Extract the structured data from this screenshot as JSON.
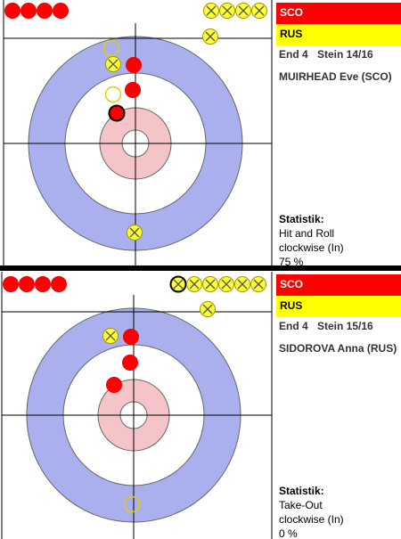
{
  "panels": [
    {
      "teams": [
        "SCO",
        "RUS"
      ],
      "end": "End 4",
      "stone": "Stein 14/16",
      "player": "MUIRHEAD Eve (SCO)",
      "stats_label": "Statistik:",
      "shot": "Hit and Roll",
      "direction": "clockwise (In)",
      "percentage": "75 %"
    },
    {
      "teams": [
        "SCO",
        "RUS"
      ],
      "end": "End 4",
      "stone": "Stein 15/16",
      "player": "SIDOROVA Anna (RUS)",
      "stats_label": "Statistik:",
      "shot": "Take-Out",
      "direction": "clockwise (In)",
      "percentage": "0 %"
    }
  ]
}
